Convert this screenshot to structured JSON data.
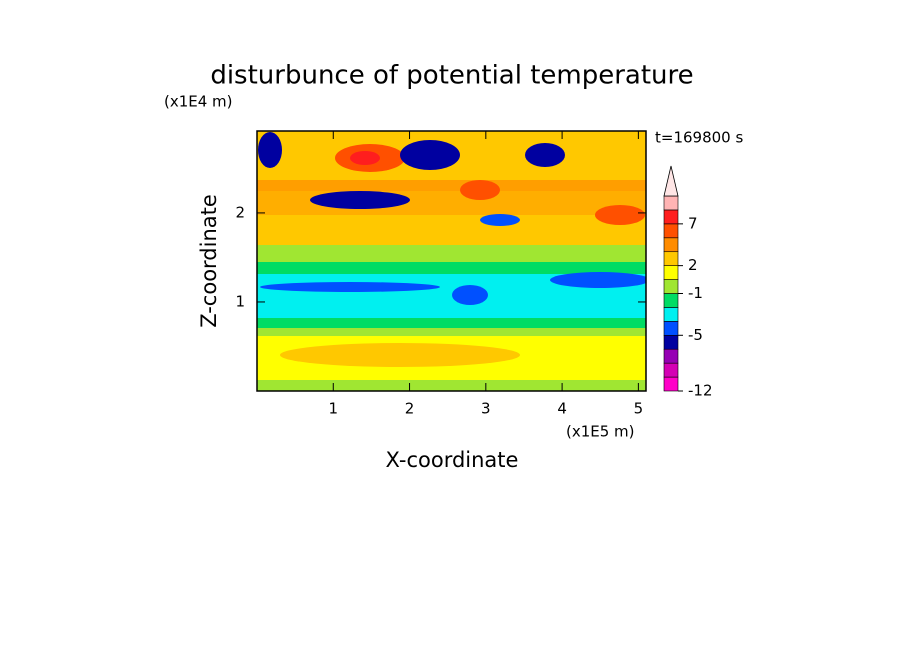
{
  "chart_data": {
    "type": "contour",
    "title": "disturbunce of potential temperature",
    "y_unit": "(x1E4 m)",
    "x_unit": "(x1E5 m)",
    "time_label": "t=169800 s",
    "xlabel": "X-coordinate",
    "ylabel": "Z-coordinate",
    "xlim": [
      0,
      5.1
    ],
    "ylim": [
      0,
      2.92
    ],
    "xticks": [
      1,
      2,
      3,
      4,
      5
    ],
    "yticks": [
      1,
      2
    ],
    "colorbar": {
      "levels": [
        -12,
        -10,
        -8,
        -6,
        -5,
        -4,
        -2,
        -1,
        1,
        2,
        4,
        5,
        7,
        9,
        11
      ],
      "colors": [
        "#ff00c8",
        "#d400b4",
        "#9600b4",
        "#0000a0",
        "#0050ff",
        "#00f0f0",
        "#00dc64",
        "#a0e632",
        "#ffff00",
        "#ffc800",
        "#ff8c00",
        "#ff5000",
        "#ff1e1e",
        "#ffb4b4"
      ],
      "extend_color": "#ffe6e6",
      "ticks": [
        -12,
        -5,
        -1,
        2,
        7
      ]
    }
  }
}
